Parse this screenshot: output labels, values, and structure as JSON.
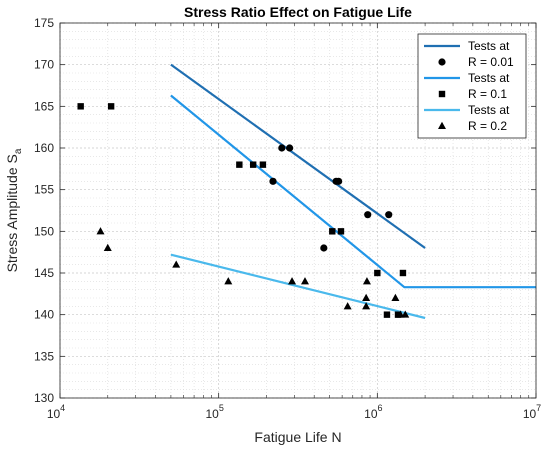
{
  "chart_data": {
    "type": "scatter",
    "title": "Stress Ratio Effect on Fatigue Life",
    "xlabel": "Fatigue Life N",
    "ylabel_main": "Stress Amplitude S",
    "ylabel_sub": "a",
    "x_scale": "log",
    "xlim": [
      10000,
      10000000
    ],
    "ylim": [
      130,
      175
    ],
    "x_ticks": [
      {
        "value": 10000,
        "base": "10",
        "exp": "4"
      },
      {
        "value": 100000,
        "base": "10",
        "exp": "5"
      },
      {
        "value": 1000000,
        "base": "10",
        "exp": "6"
      },
      {
        "value": 10000000,
        "base": "10",
        "exp": "7"
      }
    ],
    "y_ticks": [
      "130",
      "135",
      "140",
      "145",
      "150",
      "155",
      "160",
      "165",
      "170",
      "175"
    ],
    "grid": true,
    "minor_grid": true,
    "legend_position": "top-right",
    "legend": [
      {
        "kind": "line",
        "label": "Tests at",
        "color": "#1f6fb2"
      },
      {
        "kind": "marker",
        "marker": "circle",
        "label": "R = 0.01"
      },
      {
        "kind": "line",
        "label": "Tests at",
        "color": "#2196e8"
      },
      {
        "kind": "marker",
        "marker": "square",
        "label": "R = 0.1"
      },
      {
        "kind": "line",
        "label": "Tests at",
        "color": "#4ab9ec"
      },
      {
        "kind": "marker",
        "marker": "triangle",
        "label": "R = 0.2"
      }
    ],
    "series": [
      {
        "name": "R = 0.01",
        "marker": "circle",
        "color": "#000000",
        "points": [
          [
            250000,
            160
          ],
          [
            280000,
            160
          ],
          [
            550000,
            156
          ],
          [
            570000,
            156
          ],
          [
            870000,
            152
          ],
          [
            1180000,
            152
          ],
          [
            220000,
            156
          ],
          [
            460000,
            148
          ]
        ]
      },
      {
        "name": "R = 0.1",
        "marker": "square",
        "color": "#000000",
        "points": [
          [
            13500,
            165
          ],
          [
            21000,
            165
          ],
          [
            135000,
            158
          ],
          [
            165000,
            158
          ],
          [
            190000,
            158
          ],
          [
            520000,
            150
          ],
          [
            590000,
            150
          ],
          [
            1000000,
            145
          ],
          [
            1450000,
            145
          ],
          [
            1150000,
            140
          ],
          [
            1350000,
            140
          ]
        ]
      },
      {
        "name": "R = 0.2",
        "marker": "triangle",
        "color": "#000000",
        "points": [
          [
            18000,
            150
          ],
          [
            20000,
            148
          ],
          [
            54000,
            146
          ],
          [
            115000,
            144
          ],
          [
            290000,
            144
          ],
          [
            350000,
            144
          ],
          [
            650000,
            141
          ],
          [
            850000,
            141
          ],
          [
            850000,
            142
          ],
          [
            860000,
            144
          ],
          [
            1300000,
            142
          ],
          [
            1400000,
            140
          ],
          [
            1500000,
            140
          ]
        ]
      }
    ],
    "fit_lines": [
      {
        "color": "#1f6fb2",
        "points": [
          [
            50000,
            170
          ],
          [
            2000000,
            148
          ]
        ]
      },
      {
        "color": "#2196e8",
        "points": [
          [
            50000,
            166.3
          ],
          [
            1480000,
            143.3
          ],
          [
            10000000,
            143.3
          ]
        ]
      },
      {
        "color": "#4ab9ec",
        "points": [
          [
            50000,
            147.2
          ],
          [
            2000000,
            139.6
          ]
        ]
      }
    ]
  }
}
